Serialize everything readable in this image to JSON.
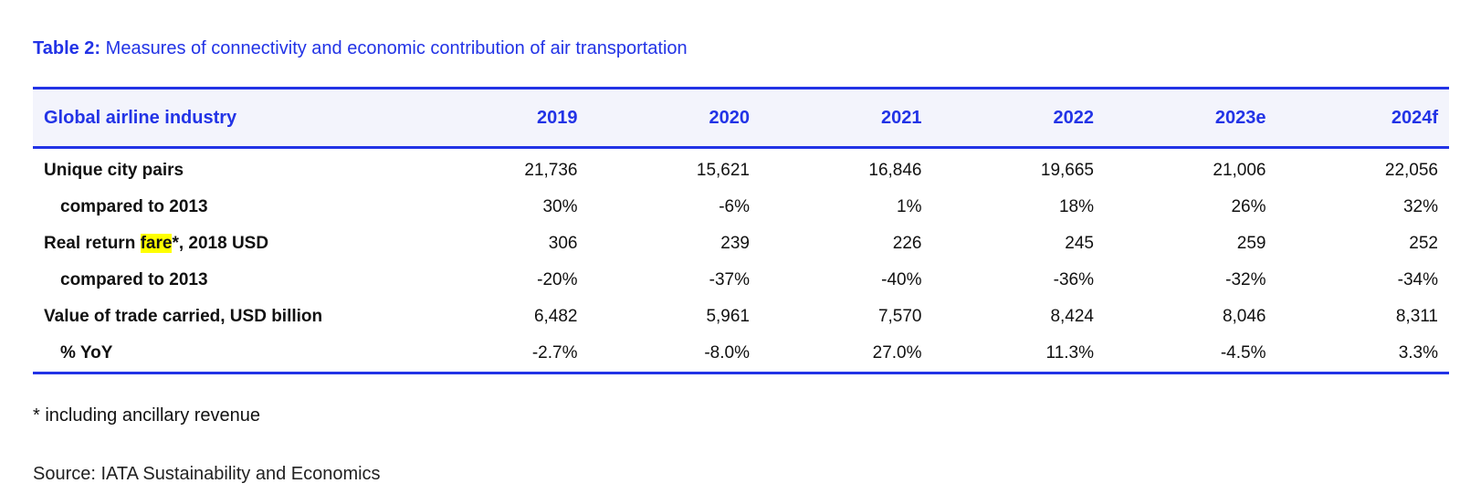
{
  "caption": {
    "label": "Table 2:",
    "title": "Measures of connectivity and economic contribution of air transportation"
  },
  "table": {
    "headers": [
      "Global airline industry",
      "2019",
      "2020",
      "2021",
      "2022",
      "2023e",
      "2024f"
    ],
    "rows": [
      {
        "label": "Unique city pairs",
        "values": [
          "21,736",
          "15,621",
          "16,846",
          "19,665",
          "21,006",
          "22,056"
        ]
      },
      {
        "label": "compared to 2013",
        "values": [
          "30%",
          "-6%",
          "1%",
          "18%",
          "26%",
          "32%"
        ]
      },
      {
        "label_before": "Real return ",
        "label_highlight": "fare",
        "label_after": "*, 2018 USD",
        "values": [
          "306",
          "239",
          "226",
          "245",
          "259",
          "252"
        ]
      },
      {
        "label": "compared to 2013",
        "values": [
          "-20%",
          "-37%",
          "-40%",
          "-36%",
          "-32%",
          "-34%"
        ]
      },
      {
        "label": "Value of trade carried, USD billion",
        "values": [
          "6,482",
          "5,961",
          "7,570",
          "8,424",
          "8,046",
          "8,311"
        ]
      },
      {
        "label": "% YoY",
        "values": [
          "-2.7%",
          "-8.0%",
          "27.0%",
          "11.3%",
          "-4.5%",
          "3.3%"
        ]
      }
    ]
  },
  "footnote": "* including ancillary revenue",
  "source": "Source: IATA Sustainability and Economics",
  "colors": {
    "accent": "#2233e6",
    "header_bg": "#f3f4fc",
    "highlight": "#ffff00"
  }
}
